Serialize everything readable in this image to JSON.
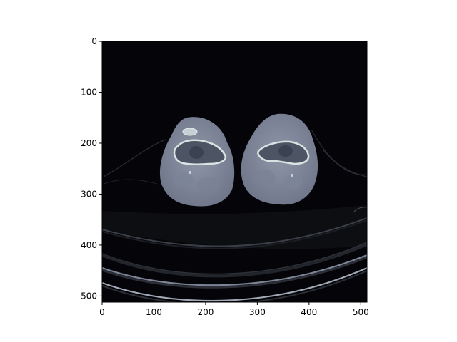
{
  "image": {
    "subject": "axial CT slice of both knees",
    "colormap": "bone",
    "x_ticks": [
      "0",
      "100",
      "200",
      "300",
      "400",
      "500"
    ],
    "y_ticks": [
      "0",
      "100",
      "200",
      "300",
      "400",
      "500"
    ],
    "x_range": [
      0,
      512
    ],
    "y_range": [
      0,
      512
    ]
  }
}
